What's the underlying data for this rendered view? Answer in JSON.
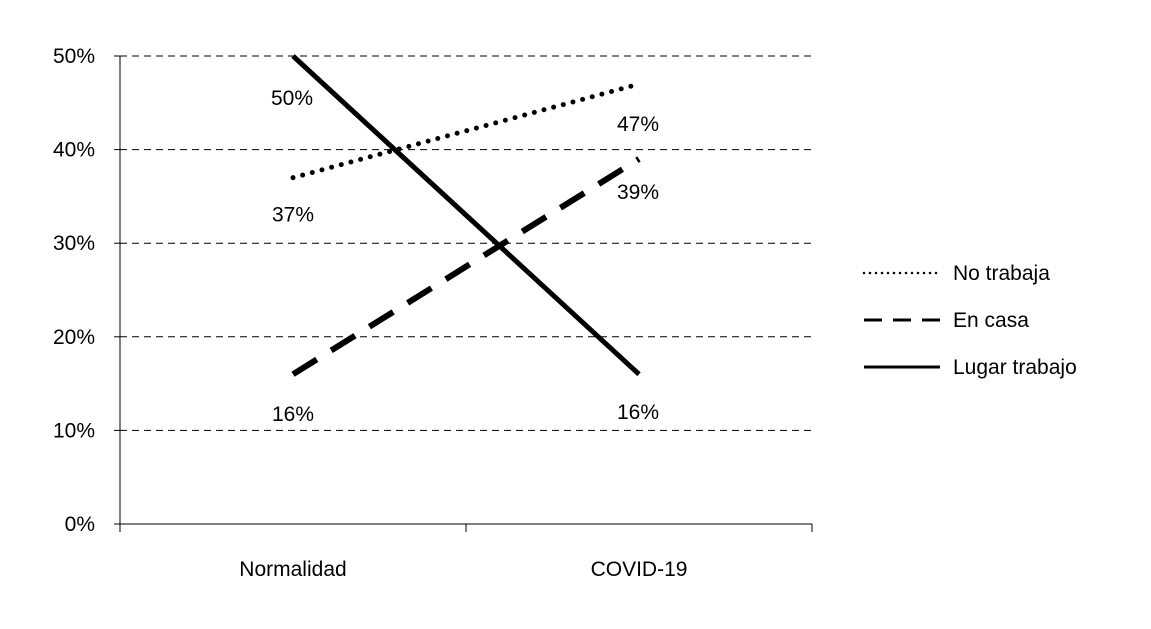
{
  "chart_data": {
    "type": "line",
    "categories": [
      "Normalidad",
      "COVID-19"
    ],
    "series": [
      {
        "name": "No trabaja",
        "values": [
          37,
          47
        ],
        "labels": [
          "37%",
          "47%"
        ],
        "style": "dotted"
      },
      {
        "name": "En casa",
        "values": [
          16,
          39
        ],
        "labels": [
          "16%",
          "39%"
        ],
        "style": "dashed"
      },
      {
        "name": "Lugar trabajo",
        "values": [
          50,
          16
        ],
        "labels": [
          "50%",
          "16%"
        ],
        "style": "solid"
      }
    ],
    "yticks": [
      "0%",
      "10%",
      "20%",
      "30%",
      "40%",
      "50%"
    ],
    "ylim": [
      0,
      50
    ],
    "grid": "dashed horizontal",
    "legend": "right",
    "title": "",
    "xlabel": "",
    "ylabel": ""
  }
}
